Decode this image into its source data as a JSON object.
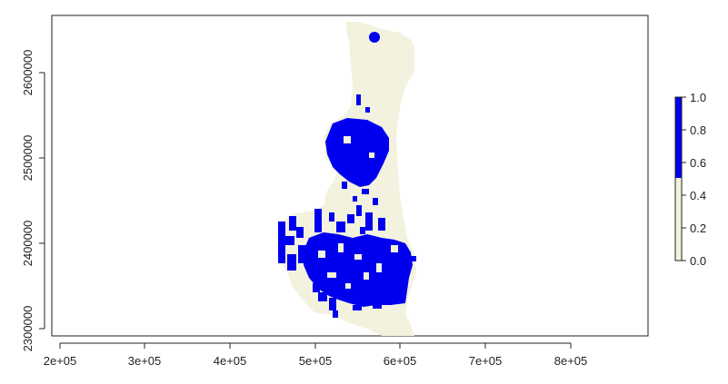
{
  "map": {
    "x_ticks": [
      "2e+05",
      "3e+05",
      "4e+05",
      "5e+05",
      "6e+05",
      "7e+05",
      "8e+05"
    ],
    "x_tick_values": [
      200000,
      300000,
      400000,
      500000,
      600000,
      700000,
      800000
    ],
    "y_ticks": [
      "2300000",
      "2400000",
      "2500000",
      "2600000"
    ],
    "y_tick_values": [
      2300000,
      2400000,
      2500000,
      2600000
    ],
    "x_range": [
      190000,
      880000
    ],
    "y_range": [
      2290000,
      2660000
    ],
    "colors": {
      "low": "#f2f2df",
      "high": "#0000ee",
      "axis": "#222222"
    }
  },
  "legend": {
    "labels": [
      "1.0",
      "0.8",
      "0.6",
      "0.4",
      "0.2",
      "0.0"
    ],
    "values": [
      1.0,
      0.8,
      0.6,
      0.4,
      0.2,
      0.0
    ],
    "split_value": 0.5
  }
}
